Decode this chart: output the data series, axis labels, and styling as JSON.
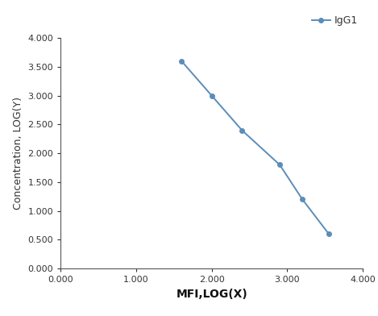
{
  "x": [
    1.6,
    2.0,
    2.4,
    2.9,
    3.2,
    3.55
  ],
  "y": [
    3.6,
    3.0,
    2.4,
    1.8,
    1.2,
    0.6
  ],
  "line_color": "#5b8db8",
  "marker": "o",
  "marker_size": 4,
  "legend_label": "IgG1",
  "xlabel": "MFI,LOG(X)",
  "ylabel": "Concentration, LOG(Y)",
  "xlim": [
    0.0,
    4.0
  ],
  "ylim": [
    0.0,
    4.0
  ],
  "xticks": [
    0.0,
    1.0,
    2.0,
    3.0,
    4.0
  ],
  "yticks": [
    0.0,
    0.5,
    1.0,
    1.5,
    2.0,
    2.5,
    3.0,
    3.5,
    4.0
  ],
  "xlabel_fontsize": 10,
  "ylabel_fontsize": 9,
  "tick_fontsize": 8,
  "legend_fontsize": 9,
  "background_color": "#ffffff"
}
